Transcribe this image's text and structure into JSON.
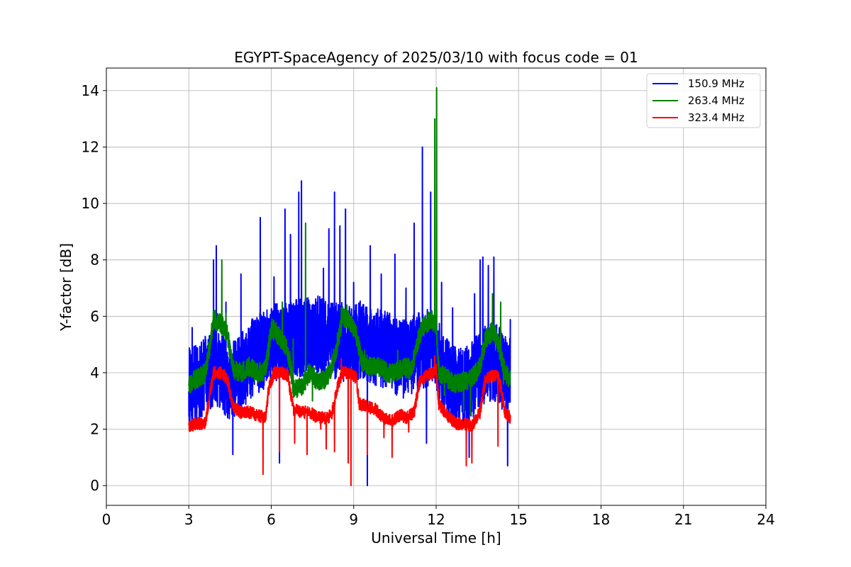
{
  "chart_data": {
    "type": "line",
    "title": "EGYPT-SpaceAgency of 2025/03/10 with focus code = 01",
    "xlabel": "Universal Time [h]",
    "ylabel": "Y-factor [dB]",
    "xlim": [
      0,
      24
    ],
    "ylim": [
      -0.7,
      14.8
    ],
    "xticks": [
      0,
      3,
      6,
      9,
      12,
      15,
      18,
      21,
      24
    ],
    "yticks": [
      0,
      2,
      4,
      6,
      8,
      10,
      12,
      14
    ],
    "grid": true,
    "legend_position": "top-right",
    "series": [
      {
        "name": "150.9 MHz",
        "color": "#0000ff",
        "baseline": [
          [
            3.0,
            3.5
          ],
          [
            3.3,
            3.6
          ],
          [
            3.6,
            3.9
          ],
          [
            3.9,
            4.2
          ],
          [
            4.2,
            4.0
          ],
          [
            4.5,
            3.7
          ],
          [
            4.8,
            3.9
          ],
          [
            5.1,
            4.3
          ],
          [
            5.4,
            4.6
          ],
          [
            5.7,
            4.8
          ],
          [
            6.0,
            5.0
          ],
          [
            6.3,
            5.1
          ],
          [
            6.6,
            5.2
          ],
          [
            6.9,
            5.3
          ],
          [
            7.2,
            5.2
          ],
          [
            7.5,
            5.4
          ],
          [
            7.8,
            5.3
          ],
          [
            8.1,
            5.1
          ],
          [
            8.4,
            5.2
          ],
          [
            8.7,
            5.0
          ],
          [
            9.0,
            5.0
          ],
          [
            9.3,
            5.2
          ],
          [
            9.6,
            5.0
          ],
          [
            9.9,
            4.9
          ],
          [
            10.2,
            4.8
          ],
          [
            10.5,
            4.6
          ],
          [
            10.8,
            4.5
          ],
          [
            11.1,
            4.6
          ],
          [
            11.4,
            4.8
          ],
          [
            11.7,
            4.9
          ],
          [
            12.0,
            4.6
          ],
          [
            12.3,
            4.0
          ],
          [
            12.6,
            3.6
          ],
          [
            12.9,
            3.5
          ],
          [
            13.2,
            3.6
          ],
          [
            13.5,
            4.0
          ],
          [
            13.8,
            4.3
          ],
          [
            14.1,
            4.4
          ],
          [
            14.4,
            4.1
          ],
          [
            14.7,
            3.9
          ]
        ],
        "amplitude": 1.4,
        "peaks": [
          [
            3.12,
            5.6
          ],
          [
            3.9,
            8.0
          ],
          [
            4.0,
            8.5
          ],
          [
            4.35,
            6.5
          ],
          [
            4.6,
            1.1
          ],
          [
            4.9,
            7.5
          ],
          [
            5.3,
            5.9
          ],
          [
            5.6,
            9.5
          ],
          [
            6.1,
            7.4
          ],
          [
            6.3,
            0.8
          ],
          [
            6.5,
            9.8
          ],
          [
            6.7,
            8.9
          ],
          [
            7.0,
            10.4
          ],
          [
            7.1,
            10.8
          ],
          [
            7.3,
            6.5
          ],
          [
            7.9,
            7.7
          ],
          [
            8.1,
            9.1
          ],
          [
            8.3,
            10.4
          ],
          [
            8.5,
            9.2
          ],
          [
            8.7,
            9.8
          ],
          [
            9.0,
            7.2
          ],
          [
            9.2,
            6.3
          ],
          [
            9.5,
            0.0
          ],
          [
            9.6,
            8.5
          ],
          [
            10.0,
            7.5
          ],
          [
            10.5,
            8.2
          ],
          [
            10.9,
            7.0
          ],
          [
            11.2,
            9.3
          ],
          [
            11.5,
            12.0
          ],
          [
            11.65,
            1.5
          ],
          [
            11.8,
            10.4
          ],
          [
            12.2,
            7.2
          ],
          [
            12.6,
            6.3
          ],
          [
            13.2,
            1.0
          ],
          [
            13.4,
            6.8
          ],
          [
            13.6,
            8.0
          ],
          [
            13.7,
            8.1
          ],
          [
            13.9,
            7.8
          ],
          [
            14.1,
            8.1
          ],
          [
            14.3,
            5.6
          ],
          [
            14.6,
            0.7
          ],
          [
            14.7,
            5.9
          ]
        ]
      },
      {
        "name": "263.4 MHz",
        "color": "#008000",
        "baseline": [
          [
            3.0,
            3.6
          ],
          [
            3.3,
            3.8
          ],
          [
            3.6,
            4.0
          ],
          [
            3.8,
            5.2
          ],
          [
            3.9,
            5.9
          ],
          [
            4.2,
            5.7
          ],
          [
            4.4,
            5.4
          ],
          [
            4.6,
            4.1
          ],
          [
            4.9,
            4.0
          ],
          [
            5.2,
            4.2
          ],
          [
            5.5,
            4.0
          ],
          [
            5.8,
            4.1
          ],
          [
            6.0,
            5.6
          ],
          [
            6.2,
            5.4
          ],
          [
            6.5,
            5.0
          ],
          [
            6.7,
            4.3
          ],
          [
            6.8,
            3.4
          ],
          [
            7.1,
            3.5
          ],
          [
            7.4,
            4.0
          ],
          [
            7.7,
            3.7
          ],
          [
            8.0,
            3.8
          ],
          [
            8.2,
            4.2
          ],
          [
            8.4,
            5.0
          ],
          [
            8.6,
            6.0
          ],
          [
            8.9,
            5.8
          ],
          [
            9.1,
            5.3
          ],
          [
            9.3,
            4.4
          ],
          [
            9.6,
            4.2
          ],
          [
            9.9,
            4.2
          ],
          [
            10.2,
            4.0
          ],
          [
            10.5,
            4.0
          ],
          [
            10.8,
            4.2
          ],
          [
            11.1,
            4.1
          ],
          [
            11.3,
            5.0
          ],
          [
            11.5,
            5.6
          ],
          [
            11.8,
            5.9
          ],
          [
            12.0,
            5.7
          ],
          [
            12.1,
            4.0
          ],
          [
            12.4,
            3.8
          ],
          [
            12.7,
            3.6
          ],
          [
            13.0,
            3.7
          ],
          [
            13.3,
            3.8
          ],
          [
            13.6,
            4.2
          ],
          [
            13.8,
            5.2
          ],
          [
            14.1,
            5.5
          ],
          [
            14.3,
            4.9
          ],
          [
            14.5,
            4.0
          ],
          [
            14.7,
            3.7
          ]
        ],
        "amplitude": 0.35,
        "peaks": [
          [
            3.1,
            3.9
          ],
          [
            3.95,
            6.2
          ],
          [
            4.2,
            8.0
          ],
          [
            4.35,
            6.1
          ],
          [
            5.0,
            4.4
          ],
          [
            6.4,
            6.5
          ],
          [
            6.8,
            5.2
          ],
          [
            7.25,
            9.3
          ],
          [
            7.5,
            3.0
          ],
          [
            8.55,
            6.3
          ],
          [
            8.75,
            6.4
          ],
          [
            9.4,
            4.8
          ],
          [
            10.6,
            4.8
          ],
          [
            11.0,
            4.5
          ],
          [
            11.95,
            13.0
          ],
          [
            12.02,
            14.1
          ],
          [
            12.3,
            3.2
          ],
          [
            13.0,
            2.6
          ],
          [
            13.25,
            2.5
          ],
          [
            13.5,
            4.0
          ],
          [
            14.05,
            6.8
          ],
          [
            14.35,
            6.5
          ],
          [
            14.45,
            3.6
          ],
          [
            14.7,
            4.0
          ]
        ]
      },
      {
        "name": "323.4 MHz",
        "color": "#ff0000",
        "baseline": [
          [
            3.0,
            2.1
          ],
          [
            3.3,
            2.2
          ],
          [
            3.6,
            2.2
          ],
          [
            3.8,
            3.4
          ],
          [
            3.9,
            4.0
          ],
          [
            4.2,
            4.0
          ],
          [
            4.4,
            3.8
          ],
          [
            4.6,
            2.8
          ],
          [
            4.9,
            2.6
          ],
          [
            5.2,
            2.6
          ],
          [
            5.5,
            2.5
          ],
          [
            5.8,
            2.4
          ],
          [
            5.9,
            3.4
          ],
          [
            6.1,
            4.0
          ],
          [
            6.4,
            4.0
          ],
          [
            6.6,
            3.9
          ],
          [
            6.8,
            2.7
          ],
          [
            7.1,
            2.6
          ],
          [
            7.4,
            2.6
          ],
          [
            7.7,
            2.4
          ],
          [
            8.0,
            2.4
          ],
          [
            8.2,
            2.5
          ],
          [
            8.4,
            3.5
          ],
          [
            8.6,
            4.0
          ],
          [
            8.9,
            4.0
          ],
          [
            9.1,
            3.8
          ],
          [
            9.2,
            2.9
          ],
          [
            9.5,
            2.8
          ],
          [
            9.8,
            2.7
          ],
          [
            10.1,
            2.4
          ],
          [
            10.4,
            2.3
          ],
          [
            10.7,
            2.5
          ],
          [
            10.9,
            2.4
          ],
          [
            11.2,
            2.6
          ],
          [
            11.4,
            3.7
          ],
          [
            11.6,
            3.9
          ],
          [
            11.9,
            4.0
          ],
          [
            12.0,
            4.1
          ],
          [
            12.1,
            2.9
          ],
          [
            12.4,
            2.5
          ],
          [
            12.7,
            2.2
          ],
          [
            13.0,
            2.2
          ],
          [
            13.3,
            2.1
          ],
          [
            13.6,
            2.6
          ],
          [
            13.8,
            3.8
          ],
          [
            14.1,
            3.9
          ],
          [
            14.3,
            3.8
          ],
          [
            14.5,
            2.6
          ],
          [
            14.7,
            2.4
          ]
        ],
        "amplitude": 0.22,
        "peaks": [
          [
            5.7,
            0.4
          ],
          [
            6.3,
            1.2
          ],
          [
            6.85,
            1.5
          ],
          [
            7.3,
            1.1
          ],
          [
            7.8,
            2.0
          ],
          [
            8.0,
            1.3
          ],
          [
            8.3,
            1.2
          ],
          [
            8.55,
            4.5
          ],
          [
            8.8,
            0.8
          ],
          [
            8.9,
            0.0
          ],
          [
            9.5,
            1.1
          ],
          [
            10.1,
            1.7
          ],
          [
            10.4,
            1.0
          ],
          [
            11.0,
            1.9
          ],
          [
            11.95,
            4.6
          ],
          [
            13.1,
            0.7
          ],
          [
            13.3,
            0.8
          ],
          [
            14.25,
            1.4
          ]
        ]
      }
    ]
  }
}
